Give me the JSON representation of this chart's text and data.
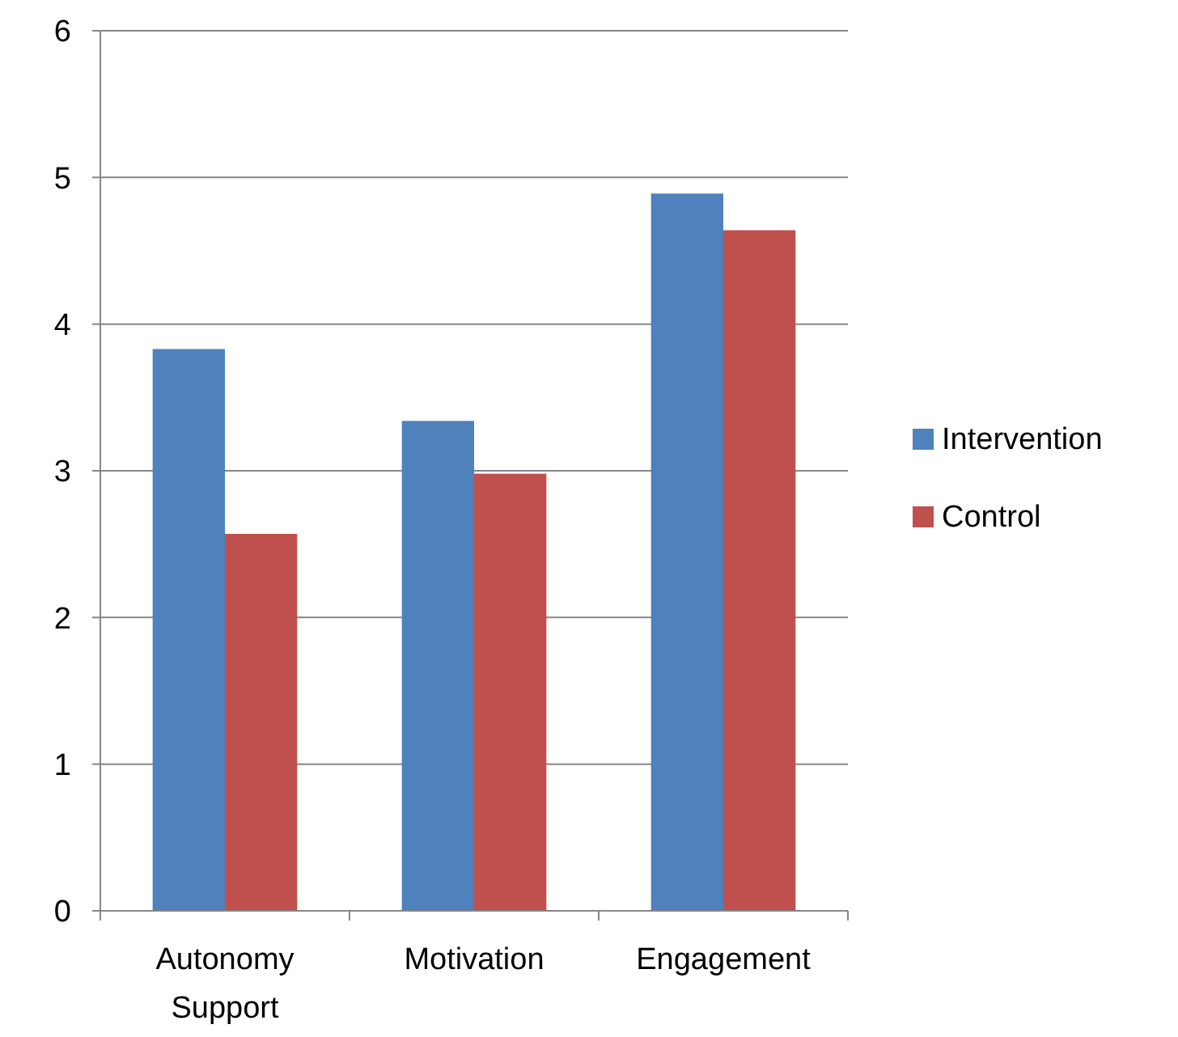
{
  "chart_data": {
    "type": "bar",
    "categories": [
      "Autonomy Support",
      "Motivation",
      "Engagement"
    ],
    "series": [
      {
        "name": "Intervention",
        "color": "#4f81bd",
        "values": [
          3.83,
          3.34,
          4.89
        ]
      },
      {
        "name": "Control",
        "color": "#c0504d",
        "values": [
          2.57,
          2.98,
          4.64
        ]
      }
    ],
    "ylim": [
      0,
      6
    ],
    "yticks": [
      0,
      1,
      2,
      3,
      4,
      5,
      6
    ],
    "grid": "y",
    "legend": "right"
  }
}
